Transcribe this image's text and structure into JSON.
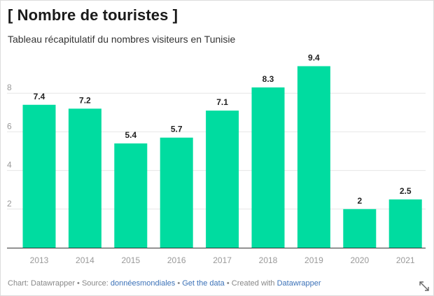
{
  "header": {
    "title": "[ Nombre de touristes ]",
    "subtitle": "Tableau récapitulatif du nombres visiteurs en Tunisie"
  },
  "chart_data": {
    "type": "bar",
    "title": "[ Nombre de touristes ]",
    "subtitle": "Tableau récapitulatif du nombres visiteurs en Tunisie",
    "xlabel": "",
    "ylabel": "",
    "categories": [
      "2013",
      "2014",
      "2015",
      "2016",
      "2017",
      "2018",
      "2019",
      "2020",
      "2021"
    ],
    "values": [
      7.4,
      7.2,
      5.4,
      5.7,
      7.1,
      8.3,
      9.4,
      2,
      2.5
    ],
    "value_labels": [
      "7.4",
      "7.2",
      "5.4",
      "5.7",
      "7.1",
      "8.3",
      "9.4",
      "2",
      "2.5"
    ],
    "yticks": [
      "2",
      "4",
      "6",
      "8"
    ],
    "ylim": [
      0,
      10
    ],
    "grid": true,
    "bar_color": "#00dca0"
  },
  "footer": {
    "prefix": "Chart: Datawrapper • Source: ",
    "source_link": "donnéesmondiales",
    "sep1": " • ",
    "data_link": "Get the data",
    "sep2": " • Created with ",
    "dw_link": "Datawrapper"
  },
  "icons": {
    "expand": "expand-icon"
  }
}
